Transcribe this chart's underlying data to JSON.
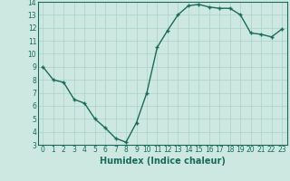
{
  "x": [
    0,
    1,
    2,
    3,
    4,
    5,
    6,
    7,
    8,
    9,
    10,
    11,
    12,
    13,
    14,
    15,
    16,
    17,
    18,
    19,
    20,
    21,
    22,
    23
  ],
  "y": [
    9,
    8,
    7.8,
    6.5,
    6.2,
    5.0,
    4.3,
    3.5,
    3.2,
    4.7,
    7.0,
    10.5,
    11.8,
    13.0,
    13.7,
    13.8,
    13.6,
    13.5,
    13.5,
    13.0,
    11.6,
    11.5,
    11.3,
    11.9
  ],
  "line_color": "#1a6b5a",
  "marker": "+",
  "marker_size": 3,
  "bg_color": "#cce8e0",
  "grid_color": "#b0d4cc",
  "xlabel": "Humidex (Indice chaleur)",
  "ylim": [
    3,
    14
  ],
  "xlim": [
    -0.5,
    23.5
  ],
  "yticks": [
    3,
    4,
    5,
    6,
    7,
    8,
    9,
    10,
    11,
    12,
    13,
    14
  ],
  "xticks": [
    0,
    1,
    2,
    3,
    4,
    5,
    6,
    7,
    8,
    9,
    10,
    11,
    12,
    13,
    14,
    15,
    16,
    17,
    18,
    19,
    20,
    21,
    22,
    23
  ],
  "tick_fontsize": 5.5,
  "xlabel_fontsize": 7,
  "linewidth": 1.0,
  "markeredgewidth": 1.0
}
